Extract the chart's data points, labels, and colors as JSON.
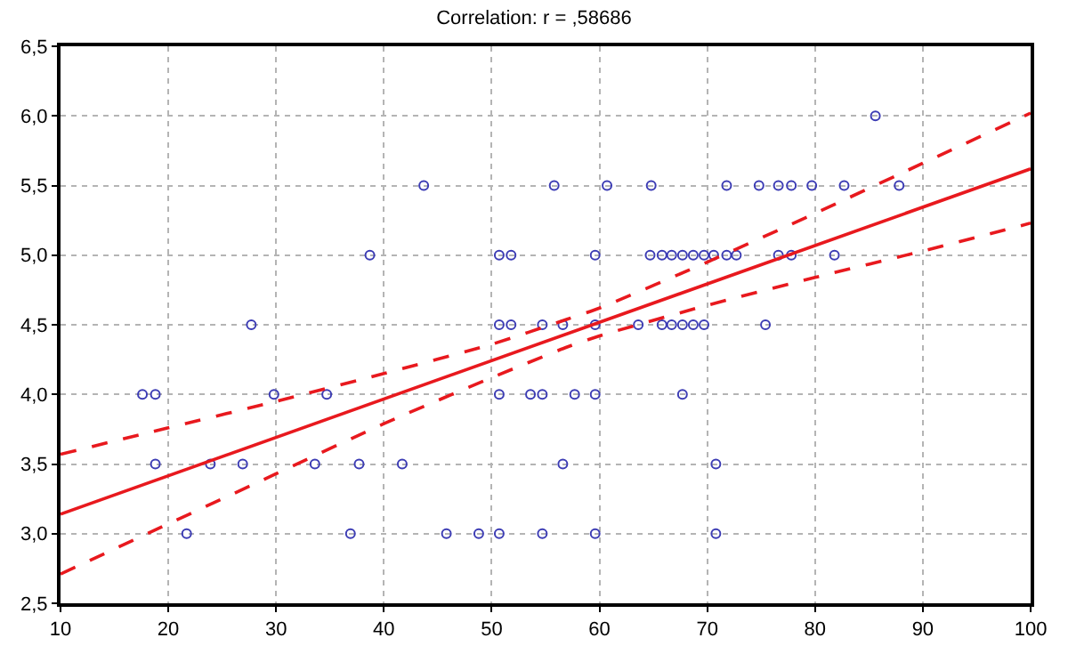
{
  "chart_data": {
    "type": "scatter",
    "title": "Correlation: r = ,58686",
    "xlim": [
      10,
      100
    ],
    "xticks": [
      10,
      20,
      30,
      40,
      50,
      60,
      70,
      80,
      90,
      100
    ],
    "ylim": [
      2.5,
      6.5
    ],
    "yticks": [
      {
        "value": 2.5,
        "label": "2,5"
      },
      {
        "value": 3.0,
        "label": "3,0"
      },
      {
        "value": 3.5,
        "label": "3,5"
      },
      {
        "value": 4.0,
        "label": "4,0"
      },
      {
        "value": 4.5,
        "label": "4,5"
      },
      {
        "value": 5.0,
        "label": "5,0"
      },
      {
        "value": 5.5,
        "label": "5,5"
      },
      {
        "value": 6.0,
        "label": "6,0"
      },
      {
        "value": 6.5,
        "label": "6,5"
      }
    ],
    "grid": true,
    "series": [
      {
        "marker": "circle",
        "color": "#3c3cb4",
        "x": [
          17.6,
          18.8,
          29.8,
          34.7,
          18.8,
          23.9,
          26.9,
          33.6,
          37.7,
          21.7,
          36.9,
          27.7,
          38.7,
          43.7,
          55.8,
          60.7,
          64.8,
          71.8,
          50.7,
          51.8,
          59.6,
          64.7,
          65.8,
          66.7,
          67.7,
          68.7,
          69.7,
          70.6,
          71.8,
          72.7,
          50.7,
          51.8,
          54.7,
          56.6,
          59.6,
          63.6,
          65.8,
          66.7,
          67.7,
          68.7,
          69.7,
          50.7,
          53.6,
          54.7,
          57.7,
          59.6,
          67.7,
          41.7,
          56.6,
          70.8,
          45.8,
          48.8,
          50.7,
          54.7,
          59.6,
          70.8,
          85.6,
          74.8,
          76.6,
          77.8,
          79.7,
          82.7,
          87.8,
          76.6,
          77.8,
          81.8,
          75.4
        ],
        "values": [
          4.0,
          4.0,
          4.0,
          4.0,
          3.5,
          3.5,
          3.5,
          3.5,
          3.5,
          3.0,
          3.0,
          4.5,
          5.0,
          5.5,
          5.5,
          5.5,
          5.5,
          5.5,
          5.0,
          5.0,
          5.0,
          5.0,
          5.0,
          5.0,
          5.0,
          5.0,
          5.0,
          5.0,
          5.0,
          5.0,
          4.5,
          4.5,
          4.5,
          4.5,
          4.5,
          4.5,
          4.5,
          4.5,
          4.5,
          4.5,
          4.5,
          4.0,
          4.0,
          4.0,
          4.0,
          4.0,
          4.0,
          3.5,
          3.5,
          3.5,
          3.0,
          3.0,
          3.0,
          3.0,
          3.0,
          3.0,
          6.0,
          5.5,
          5.5,
          5.5,
          5.5,
          5.5,
          5.5,
          5.0,
          5.0,
          5.0,
          4.5
        ]
      },
      {
        "type": "line",
        "line_style": "solid",
        "color": "#e8191e",
        "x": [
          10,
          100
        ],
        "values": [
          3.14,
          5.62
        ]
      },
      {
        "type": "line",
        "line_style": "dashed",
        "color": "#e8191e",
        "x": [
          10,
          20,
          30,
          40,
          50,
          57,
          60,
          70,
          80,
          90,
          100
        ],
        "values": [
          3.57,
          3.76,
          3.95,
          4.15,
          4.36,
          4.54,
          4.62,
          4.95,
          5.3,
          5.66,
          6.02
        ]
      },
      {
        "type": "line",
        "line_style": "dashed",
        "color": "#e8191e",
        "x": [
          10,
          20,
          30,
          40,
          50,
          57,
          60,
          70,
          80,
          90,
          100
        ],
        "values": [
          2.71,
          3.07,
          3.43,
          3.79,
          4.12,
          4.34,
          4.42,
          4.64,
          4.84,
          5.03,
          5.23
        ]
      }
    ]
  }
}
